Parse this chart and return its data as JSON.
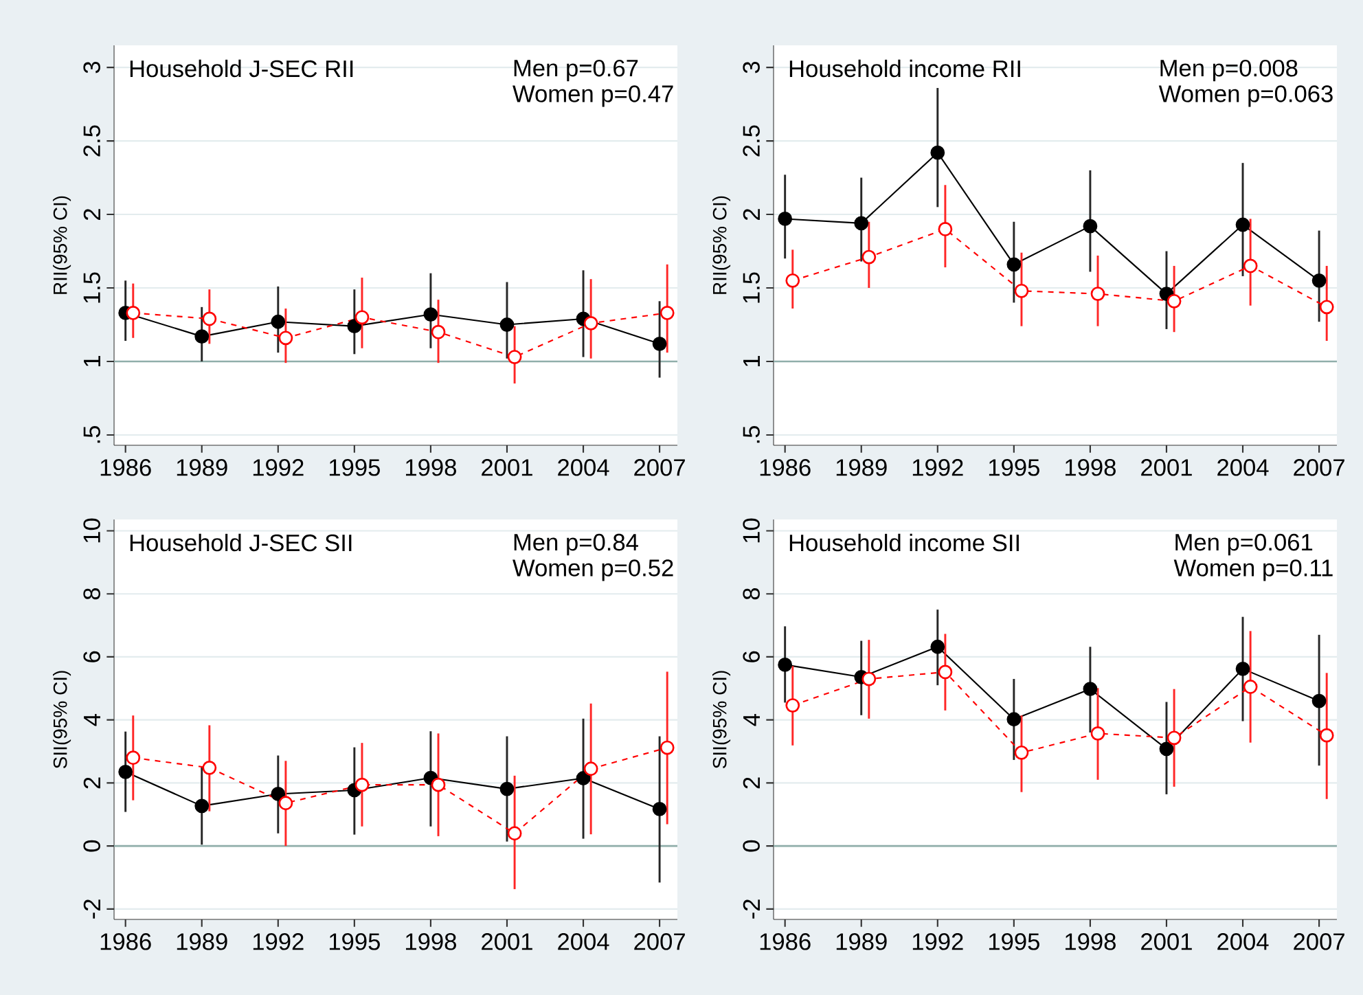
{
  "chart_data": [
    {
      "type": "line",
      "title": "Household J-SEC RII",
      "ylabel": "RII(95% CI)",
      "annotations": [
        "Men p=0.67",
        "Women p=0.47"
      ],
      "xlim": [
        1985.55,
        2007.7
      ],
      "xticks": [
        1986,
        1989,
        1992,
        1995,
        1998,
        2001,
        2004,
        2007
      ],
      "ylim": [
        0.43,
        3.15
      ],
      "yticks": [
        {
          "value": 0.5,
          "label": ".5"
        },
        1,
        1.5,
        2,
        2.5,
        3
      ],
      "grid": "y",
      "marker": "circle",
      "ref_lines": [
        {
          "axis": "y",
          "value": 1,
          "color": "#90aeaa"
        }
      ],
      "series": [
        {
          "color": "#000000",
          "line_style": "solid",
          "x": [
            1986,
            1989,
            1992,
            1995,
            1998,
            2001,
            2004,
            2007
          ],
          "values": [
            1.33,
            1.17,
            1.27,
            1.24,
            1.32,
            1.25,
            1.29,
            1.12
          ],
          "errors": [
            [
              1.14,
              1.55
            ],
            [
              1.0,
              1.37
            ],
            [
              1.06,
              1.51
            ],
            [
              1.05,
              1.49
            ],
            [
              1.09,
              1.6
            ],
            [
              1.02,
              1.54
            ],
            [
              1.03,
              1.62
            ],
            [
              0.89,
              1.41
            ]
          ]
        },
        {
          "color": "#ff0000",
          "line_style": "dashed",
          "x": [
            1986.3,
            1989.3,
            1992.3,
            1995.3,
            1998.3,
            2001.3,
            2004.3,
            2007.3
          ],
          "values": [
            1.33,
            1.29,
            1.16,
            1.3,
            1.2,
            1.03,
            1.26,
            1.33
          ],
          "errors": [
            [
              1.16,
              1.53
            ],
            [
              1.12,
              1.49
            ],
            [
              0.99,
              1.36
            ],
            [
              1.09,
              1.57
            ],
            [
              0.99,
              1.42
            ],
            [
              0.85,
              1.24
            ],
            [
              1.02,
              1.56
            ],
            [
              1.06,
              1.66
            ]
          ]
        }
      ]
    },
    {
      "type": "line",
      "title": "Household income RII",
      "ylabel": "RII(95% CI)",
      "annotations": [
        "Men p=0.008",
        "Women p=0.063"
      ],
      "xlim": [
        1985.55,
        2007.7
      ],
      "xticks": [
        1986,
        1989,
        1992,
        1995,
        1998,
        2001,
        2004,
        2007
      ],
      "ylim": [
        0.43,
        3.15
      ],
      "yticks": [
        {
          "value": 0.5,
          "label": ".5"
        },
        1,
        1.5,
        2,
        2.5,
        3
      ],
      "grid": "y",
      "marker": "circle",
      "ref_lines": [
        {
          "axis": "y",
          "value": 1,
          "color": "#90aeaa"
        }
      ],
      "series": [
        {
          "color": "#000000",
          "line_style": "solid",
          "x": [
            1986,
            1989,
            1992,
            1995,
            1998,
            2001,
            2004,
            2007
          ],
          "values": [
            1.97,
            1.94,
            2.42,
            1.66,
            1.92,
            1.46,
            1.93,
            1.55
          ],
          "errors": [
            [
              1.7,
              2.27
            ],
            [
              1.68,
              2.25
            ],
            [
              2.05,
              2.86
            ],
            [
              1.4,
              1.95
            ],
            [
              1.61,
              2.3
            ],
            [
              1.22,
              1.75
            ],
            [
              1.58,
              2.35
            ],
            [
              1.27,
              1.89
            ]
          ]
        },
        {
          "color": "#ff0000",
          "line_style": "dashed",
          "x": [
            1986.3,
            1989.3,
            1992.3,
            1995.3,
            1998.3,
            2001.3,
            2004.3,
            2007.3
          ],
          "values": [
            1.55,
            1.71,
            1.9,
            1.48,
            1.46,
            1.41,
            1.65,
            1.37
          ],
          "errors": [
            [
              1.36,
              1.76
            ],
            [
              1.5,
              1.95
            ],
            [
              1.64,
              2.2
            ],
            [
              1.24,
              1.74
            ],
            [
              1.24,
              1.72
            ],
            [
              1.2,
              1.65
            ],
            [
              1.38,
              1.97
            ],
            [
              1.14,
              1.65
            ]
          ]
        }
      ]
    },
    {
      "type": "line",
      "title": "Household J-SEC SII",
      "ylabel": "SII(95% CI)",
      "annotations": [
        "Men p=0.84",
        "Women p=0.52"
      ],
      "xlim": [
        1985.55,
        2007.7
      ],
      "xticks": [
        1986,
        1989,
        1992,
        1995,
        1998,
        2001,
        2004,
        2007
      ],
      "ylim": [
        -2.33,
        10.36
      ],
      "yticks": [
        -2,
        0,
        2,
        4,
        6,
        8,
        10
      ],
      "grid": "y",
      "marker": "circle",
      "ref_lines": [
        {
          "axis": "y",
          "value": 0,
          "color": "#90aeaa"
        }
      ],
      "series": [
        {
          "color": "#000000",
          "line_style": "solid",
          "x": [
            1986,
            1989,
            1992,
            1995,
            1998,
            2001,
            2004,
            2007
          ],
          "values": [
            2.35,
            1.27,
            1.65,
            1.77,
            2.16,
            1.81,
            2.15,
            1.17
          ],
          "errors": [
            [
              1.08,
              3.63
            ],
            [
              0.04,
              2.5
            ],
            [
              0.4,
              2.87
            ],
            [
              0.36,
              3.13
            ],
            [
              0.62,
              3.64
            ],
            [
              0.14,
              3.48
            ],
            [
              0.23,
              4.04
            ],
            [
              -1.16,
              3.48
            ]
          ]
        },
        {
          "color": "#ff0000",
          "line_style": "dashed",
          "x": [
            1986.3,
            1989.3,
            1992.3,
            1995.3,
            1998.3,
            2001.3,
            2004.3,
            2007.3
          ],
          "values": [
            2.8,
            2.48,
            1.36,
            1.94,
            1.94,
            0.4,
            2.45,
            3.12
          ],
          "errors": [
            [
              1.45,
              4.14
            ],
            [
              1.1,
              3.83
            ],
            [
              0.0,
              2.7
            ],
            [
              0.62,
              3.27
            ],
            [
              0.31,
              3.57
            ],
            [
              -1.37,
              2.23
            ],
            [
              0.37,
              4.52
            ],
            [
              0.69,
              5.53
            ]
          ]
        }
      ]
    },
    {
      "type": "line",
      "title": "Household income SII",
      "ylabel": "SII(95% CI)",
      "annotations": [
        "Men p=0.061",
        "Women p=0.11"
      ],
      "xlim": [
        1985.55,
        2007.7
      ],
      "xticks": [
        1986,
        1989,
        1992,
        1995,
        1998,
        2001,
        2004,
        2007
      ],
      "ylim": [
        -2.33,
        10.36
      ],
      "yticks": [
        -2,
        0,
        2,
        4,
        6,
        8,
        10
      ],
      "grid": "y",
      "marker": "circle",
      "ref_lines": [
        {
          "axis": "y",
          "value": 0,
          "color": "#90aeaa"
        }
      ],
      "series": [
        {
          "color": "#000000",
          "line_style": "solid",
          "x": [
            1986,
            1989,
            1992,
            1995,
            1998,
            2001,
            2004,
            2007
          ],
          "values": [
            5.75,
            5.36,
            6.32,
            4.02,
            4.98,
            3.08,
            5.62,
            4.6
          ],
          "errors": [
            [
              4.55,
              6.97
            ],
            [
              4.15,
              6.51
            ],
            [
              5.1,
              7.5
            ],
            [
              2.73,
              5.3
            ],
            [
              3.6,
              6.32
            ],
            [
              1.64,
              4.57
            ],
            [
              3.96,
              7.27
            ],
            [
              2.55,
              6.7
            ]
          ]
        },
        {
          "color": "#ff0000",
          "line_style": "dashed",
          "x": [
            1986.3,
            1989.3,
            1992.3,
            1995.3,
            1998.3,
            2001.3,
            2004.3,
            2007.3
          ],
          "values": [
            4.46,
            5.3,
            5.52,
            2.96,
            3.57,
            3.43,
            5.05,
            3.51
          ],
          "errors": [
            [
              3.19,
              5.71
            ],
            [
              4.04,
              6.54
            ],
            [
              4.3,
              6.73
            ],
            [
              1.71,
              4.14
            ],
            [
              2.1,
              5.01
            ],
            [
              1.88,
              4.98
            ],
            [
              3.28,
              6.82
            ],
            [
              1.49,
              5.49
            ]
          ]
        }
      ]
    }
  ]
}
